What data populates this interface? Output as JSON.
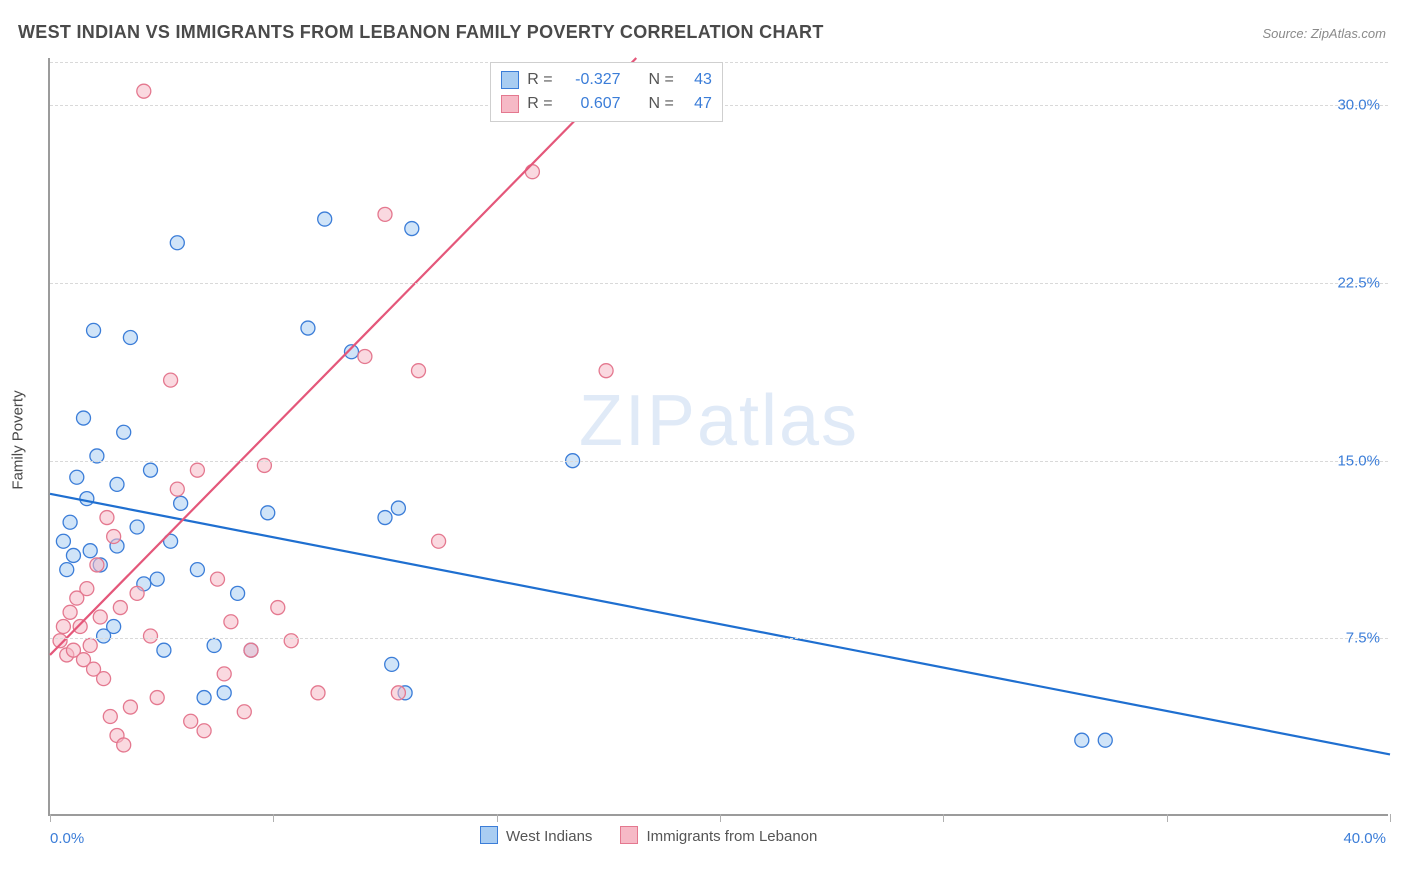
{
  "title": "WEST INDIAN VS IMMIGRANTS FROM LEBANON FAMILY POVERTY CORRELATION CHART",
  "source_label": "Source: ",
  "source_name": "ZipAtlas.com",
  "y_axis_label": "Family Poverty",
  "watermark_a": "ZIP",
  "watermark_b": "atlas",
  "chart": {
    "type": "scatter",
    "xlim": [
      0,
      40
    ],
    "ylim": [
      0,
      32
    ],
    "x_min_label": "0.0%",
    "x_max_label": "40.0%",
    "y_ticks": [
      7.5,
      15.0,
      22.5,
      30.0
    ],
    "y_tick_labels": [
      "7.5%",
      "15.0%",
      "22.5%",
      "30.0%"
    ],
    "x_ticks": [
      0,
      6.67,
      13.33,
      20,
      26.67,
      33.33,
      40
    ],
    "grid_color": "#d9d9d9",
    "axis_color": "#9b9b9b",
    "background_color": "#ffffff",
    "tick_label_color": "#3b7dd8",
    "marker_radius": 7,
    "marker_stroke_width": 1.3,
    "trend_line_width": 2.2,
    "series": [
      {
        "key": "west_indians",
        "label": "West Indians",
        "fill": "#a9cdf2",
        "stroke": "#3b7dd8",
        "fill_opacity": 0.55,
        "trend": {
          "x1": 0,
          "y1": 13.6,
          "x2": 40,
          "y2": 2.6,
          "color": "#1f6fd0"
        },
        "stats": {
          "R": "-0.327",
          "N": "43"
        },
        "points": [
          [
            0.4,
            11.6
          ],
          [
            0.5,
            10.4
          ],
          [
            0.6,
            12.4
          ],
          [
            0.7,
            11.0
          ],
          [
            0.8,
            14.3
          ],
          [
            1.0,
            16.8
          ],
          [
            1.1,
            13.4
          ],
          [
            1.2,
            11.2
          ],
          [
            1.3,
            20.5
          ],
          [
            1.5,
            10.6
          ],
          [
            1.6,
            7.6
          ],
          [
            1.9,
            8.0
          ],
          [
            2.0,
            14.0
          ],
          [
            2.2,
            16.2
          ],
          [
            2.4,
            20.2
          ],
          [
            2.6,
            12.2
          ],
          [
            2.8,
            9.8
          ],
          [
            3.0,
            14.6
          ],
          [
            3.2,
            10.0
          ],
          [
            3.4,
            7.0
          ],
          [
            3.6,
            11.6
          ],
          [
            3.8,
            24.2
          ],
          [
            3.9,
            13.2
          ],
          [
            4.4,
            10.4
          ],
          [
            4.6,
            5.0
          ],
          [
            4.9,
            7.2
          ],
          [
            5.2,
            5.2
          ],
          [
            5.6,
            9.4
          ],
          [
            6.0,
            7.0
          ],
          [
            6.5,
            12.8
          ],
          [
            7.7,
            20.6
          ],
          [
            8.2,
            25.2
          ],
          [
            9.0,
            19.6
          ],
          [
            10.0,
            12.6
          ],
          [
            10.2,
            6.4
          ],
          [
            10.4,
            13.0
          ],
          [
            10.6,
            5.2
          ],
          [
            10.8,
            24.8
          ],
          [
            15.6,
            15.0
          ],
          [
            30.8,
            3.2
          ],
          [
            31.5,
            3.2
          ],
          [
            2.0,
            11.4
          ],
          [
            1.4,
            15.2
          ]
        ]
      },
      {
        "key": "lebanon",
        "label": "Immigrants from Lebanon",
        "fill": "#f6b9c6",
        "stroke": "#e4788f",
        "fill_opacity": 0.55,
        "trend": {
          "x1": 0,
          "y1": 6.8,
          "x2": 17.5,
          "y2": 32.0,
          "color": "#e4577a"
        },
        "stats": {
          "R": "0.607",
          "N": "47"
        },
        "points": [
          [
            0.3,
            7.4
          ],
          [
            0.4,
            8.0
          ],
          [
            0.5,
            6.8
          ],
          [
            0.6,
            8.6
          ],
          [
            0.7,
            7.0
          ],
          [
            0.8,
            9.2
          ],
          [
            0.9,
            8.0
          ],
          [
            1.0,
            6.6
          ],
          [
            1.1,
            9.6
          ],
          [
            1.2,
            7.2
          ],
          [
            1.3,
            6.2
          ],
          [
            1.4,
            10.6
          ],
          [
            1.5,
            8.4
          ],
          [
            1.6,
            5.8
          ],
          [
            1.7,
            12.6
          ],
          [
            1.8,
            4.2
          ],
          [
            1.9,
            11.8
          ],
          [
            2.0,
            3.4
          ],
          [
            2.1,
            8.8
          ],
          [
            2.2,
            3.0
          ],
          [
            2.4,
            4.6
          ],
          [
            2.6,
            9.4
          ],
          [
            2.8,
            30.6
          ],
          [
            3.0,
            7.6
          ],
          [
            3.2,
            5.0
          ],
          [
            3.6,
            18.4
          ],
          [
            3.8,
            13.8
          ],
          [
            4.2,
            4.0
          ],
          [
            4.4,
            14.6
          ],
          [
            4.6,
            3.6
          ],
          [
            5.0,
            10.0
          ],
          [
            5.2,
            6.0
          ],
          [
            5.4,
            8.2
          ],
          [
            5.8,
            4.4
          ],
          [
            6.0,
            7.0
          ],
          [
            6.4,
            14.8
          ],
          [
            6.8,
            8.8
          ],
          [
            7.2,
            7.4
          ],
          [
            8.0,
            5.2
          ],
          [
            9.4,
            19.4
          ],
          [
            10.0,
            25.4
          ],
          [
            10.4,
            5.2
          ],
          [
            11.0,
            18.8
          ],
          [
            11.6,
            11.6
          ],
          [
            13.6,
            30.4
          ],
          [
            14.4,
            27.2
          ],
          [
            16.6,
            18.8
          ]
        ]
      }
    ]
  },
  "stats_box": {
    "labels": {
      "R": "R =",
      "N": "N ="
    }
  }
}
